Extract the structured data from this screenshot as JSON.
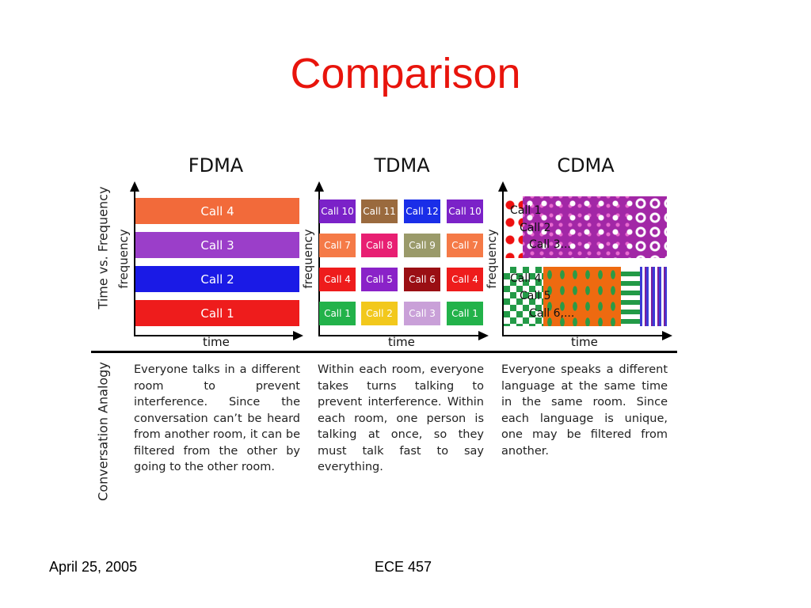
{
  "slide": {
    "title": "Comparison",
    "footer_left": "April 25, 2005",
    "footer_center": "ECE 457"
  },
  "figure": {
    "row_label_top": "Time vs. Frequency",
    "row_label_bottom": "Conversation Analogy",
    "panels": [
      {
        "title": "FDMA",
        "y_axis": "frequency",
        "x_axis": "time",
        "bars": [
          {
            "label": "Call 4",
            "color": "#f26a3a"
          },
          {
            "label": "Call 3",
            "color": "#9b3ec9"
          },
          {
            "label": "Call 2",
            "color": "#1a1ae6"
          },
          {
            "label": "Call 1",
            "color": "#ee1c1c"
          }
        ],
        "description": "Everyone talks in a different room to prevent interference. Since the conversation can’t be heard from another room, it can be filtered from the other by going to the other room."
      },
      {
        "title": "TDMA",
        "y_axis": "frequency",
        "x_axis": "time",
        "grid": [
          [
            {
              "label": "Call 10",
              "color": "#7b22c8"
            },
            {
              "label": "Call 11",
              "color": "#9a6a3e"
            },
            {
              "label": "Call 12",
              "color": "#1a2ee8"
            },
            {
              "label": "Call 10",
              "color": "#7b22c8"
            }
          ],
          [
            {
              "label": "Call 7",
              "color": "#f57a47"
            },
            {
              "label": "Call 8",
              "color": "#e81f72"
            },
            {
              "label": "Call 9",
              "color": "#9a9a6a"
            },
            {
              "label": "Call 7",
              "color": "#f57a47"
            }
          ],
          [
            {
              "label": "Call 4",
              "color": "#ee1c1c"
            },
            {
              "label": "Call 5",
              "color": "#8a22c8"
            },
            {
              "label": "Call 6",
              "color": "#9a0f14"
            },
            {
              "label": "Call 4",
              "color": "#ee1c1c"
            }
          ],
          [
            {
              "label": "Call 1",
              "color": "#22b24a"
            },
            {
              "label": "Call 2",
              "color": "#f2c81c"
            },
            {
              "label": "Call 3",
              "color": "#c9a0d8"
            },
            {
              "label": "Call 1",
              "color": "#22b24a"
            }
          ]
        ],
        "description": "Within each room, everyone takes turns talking to prevent interference. Within each room, one person is talking at once, so they must talk fast to say everything."
      },
      {
        "title": "CDMA",
        "y_axis": "frequency",
        "x_axis": "time",
        "labels": [
          "Call 1",
          "Call 2",
          "Call 3...",
          "Call 4",
          "Call 5",
          "Call 6,..."
        ],
        "description": "Everyone speaks a different language at the same time in the same room. Since each language is unique, one may be filtered from another."
      }
    ]
  }
}
